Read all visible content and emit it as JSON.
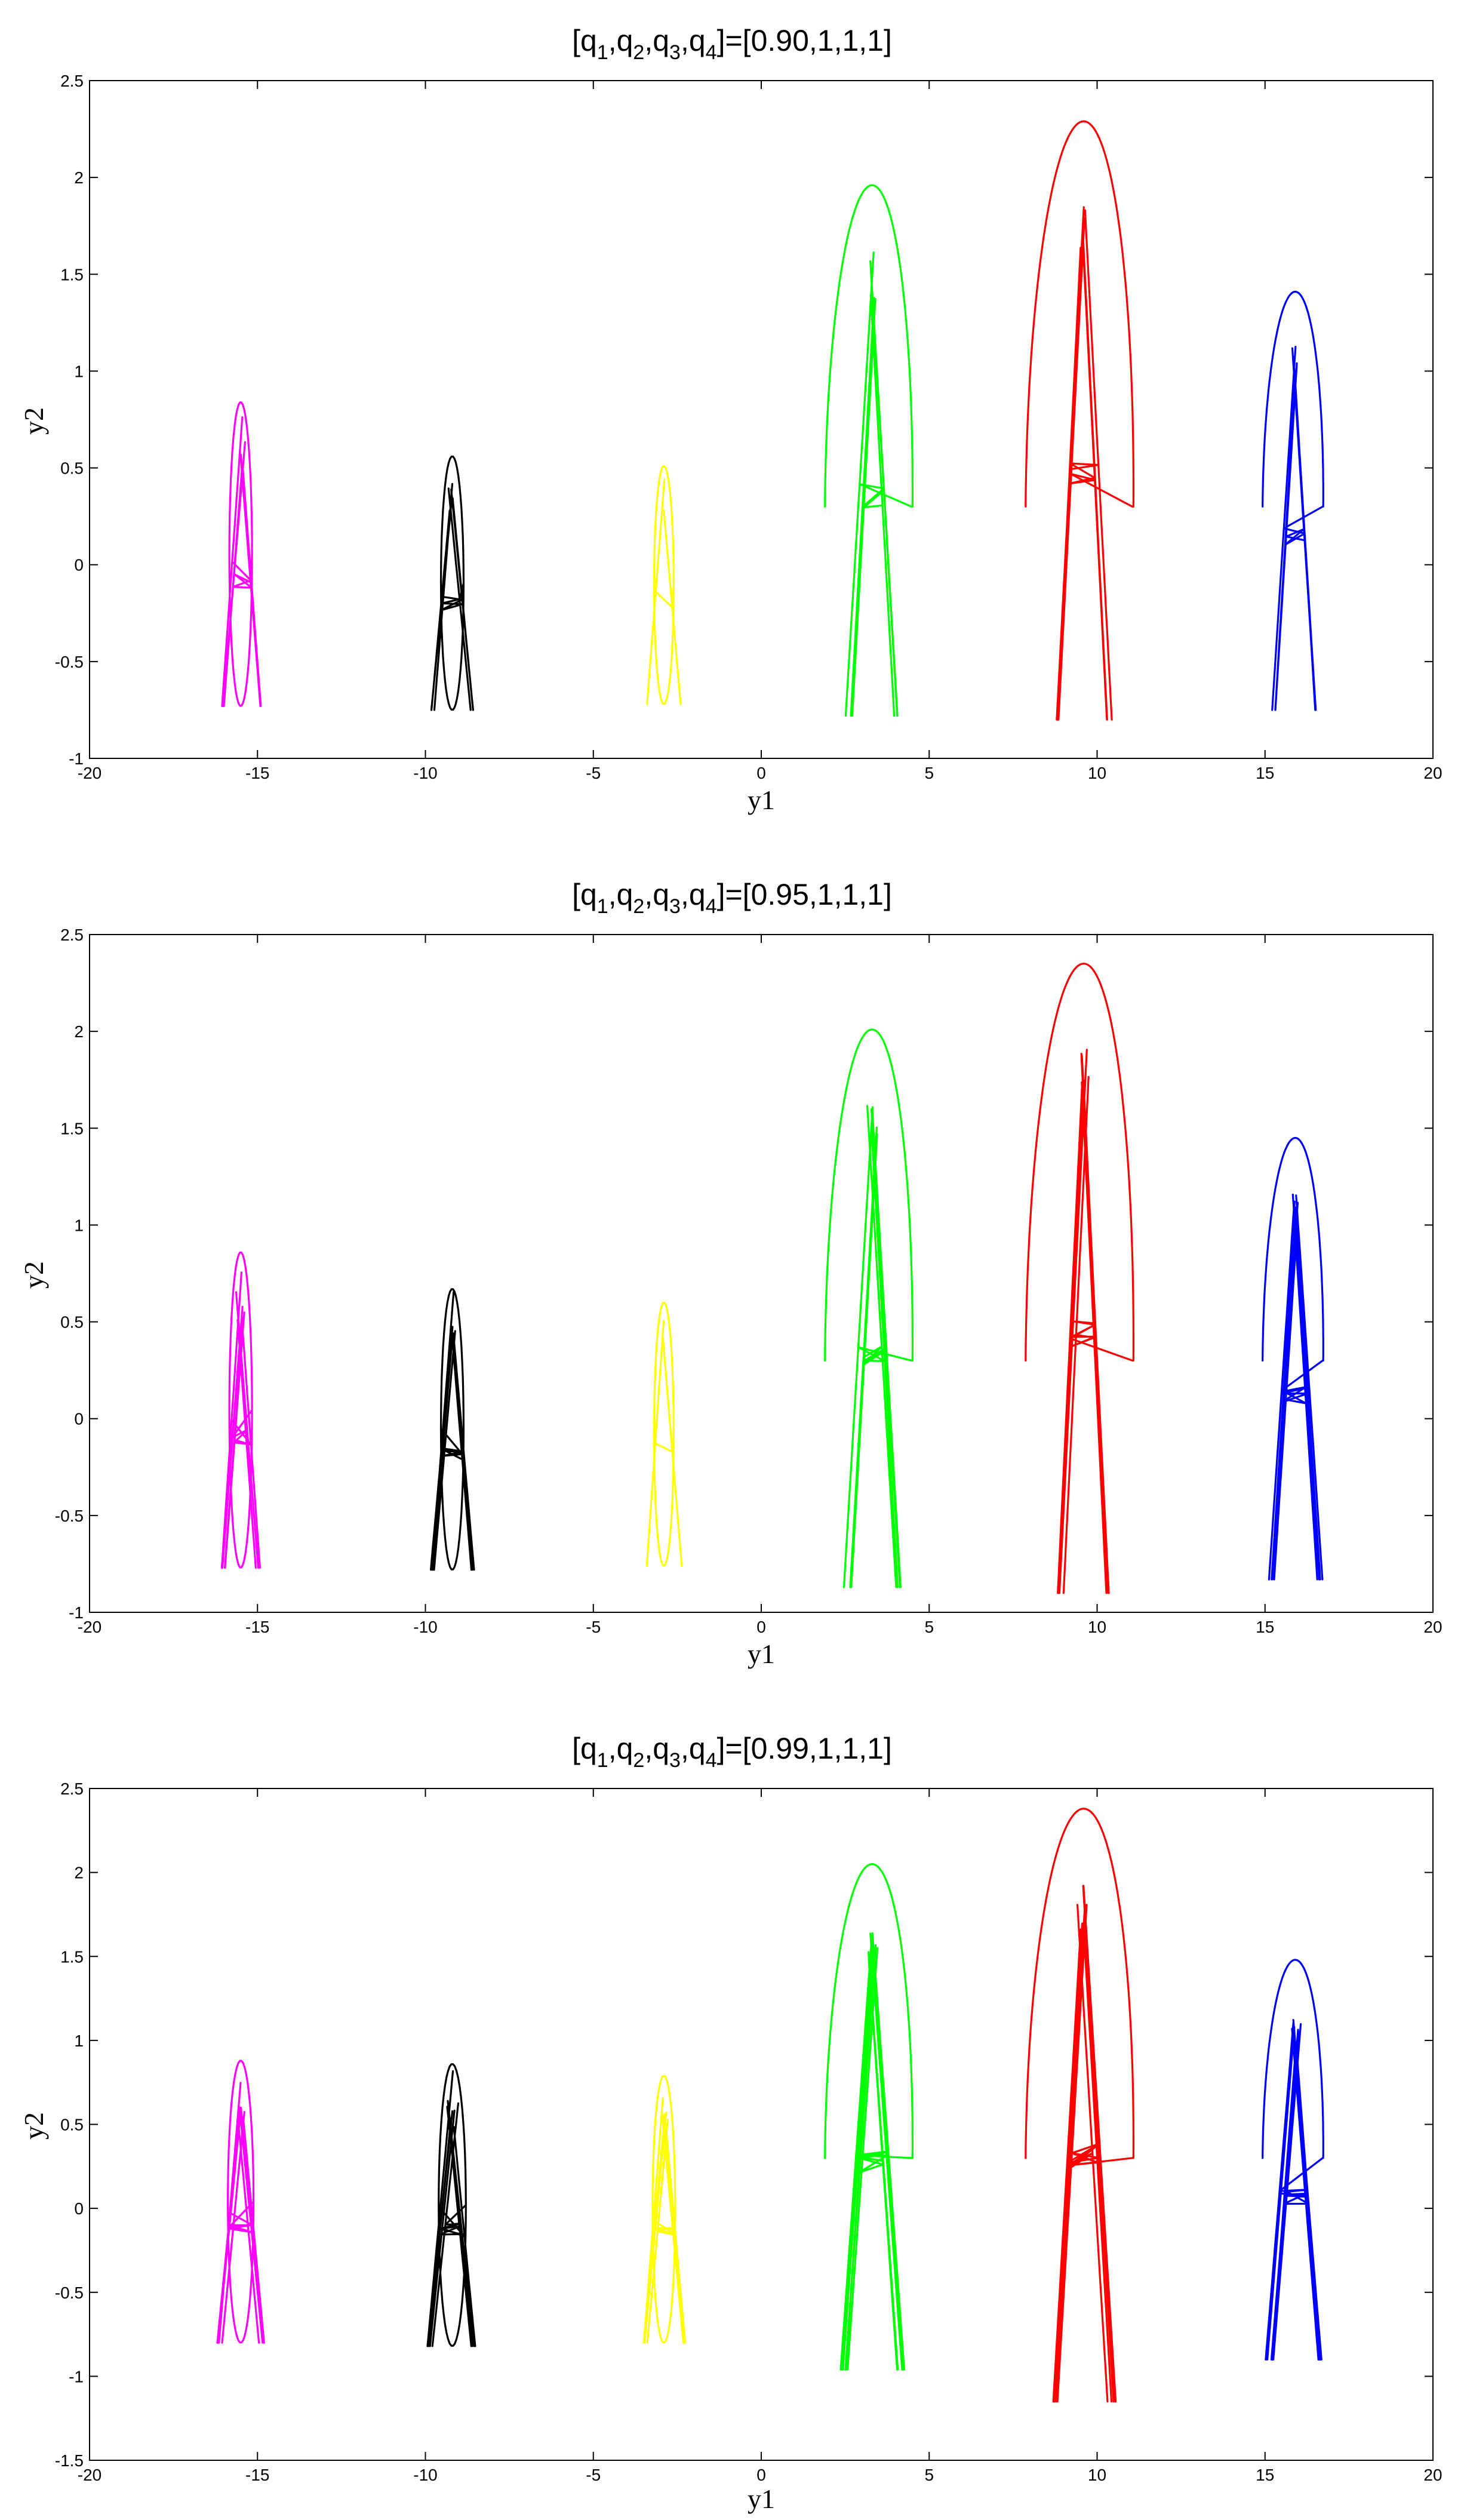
{
  "colors": {
    "magenta": "#ff00ff",
    "black": "#000000",
    "yellow": "#ffff00",
    "green": "#00ff00",
    "red": "#ff0000",
    "blue": "#0000ff"
  },
  "chart_data": [
    {
      "type": "line",
      "title": "[q1,q2,q3,q4]=[0.90,1,1,1]",
      "title_parts": {
        "open": "[q",
        "s1": "1",
        "c1": ",q",
        "s2": "2",
        "c2": ",q",
        "s3": "3",
        "c3": ",q",
        "s4": "4",
        "rest": "]=[0.90,1,1,1]"
      },
      "xlabel": "y1",
      "ylabel": "y2",
      "xlim": [
        -20,
        20
      ],
      "ylim": [
        -1,
        2.5
      ],
      "xticks": [
        -20,
        -15,
        -10,
        -5,
        0,
        5,
        10,
        15,
        20
      ],
      "xtick_labels": [
        "-20",
        "-15",
        "-10",
        "-5",
        "0",
        "5",
        "10",
        "15",
        "20"
      ],
      "yticks": [
        -1,
        -0.5,
        0,
        0.5,
        1,
        1.5,
        2,
        2.5
      ],
      "ytick_labels": [
        "-1",
        "-0.5",
        "0",
        "0.5",
        "1",
        "1.5",
        "2",
        "2.5"
      ],
      "grid": false,
      "series": [
        {
          "color": "magenta",
          "center": -15.5,
          "x_range": [
            -16.3,
            -14.8
          ],
          "y_range": [
            -0.73,
            0.84
          ],
          "loops": 6,
          "transient_start": null
        },
        {
          "color": "black",
          "center": -9.2,
          "x_range": [
            -10.0,
            -8.5
          ],
          "y_range": [
            -0.75,
            0.56
          ],
          "loops": 6,
          "transient_start": null
        },
        {
          "color": "yellow",
          "center": -2.9,
          "x_range": [
            -3.5,
            -2.2
          ],
          "y_range": [
            -0.72,
            0.51
          ],
          "loops": 2,
          "transient_start": null
        },
        {
          "color": "green",
          "center": 3.3,
          "x_range": [
            2.5,
            4.4
          ],
          "y_range": [
            -0.78,
            1.96
          ],
          "loops": 6,
          "transient_start": [
            2.0,
            0.3
          ]
        },
        {
          "color": "red",
          "center": 9.6,
          "x_range": [
            8.7,
            10.6
          ],
          "y_range": [
            -0.8,
            2.29
          ],
          "loops": 7,
          "transient_start": [
            8.0,
            0.3
          ]
        },
        {
          "color": "blue",
          "center": 15.9,
          "x_range": [
            15.1,
            16.7
          ],
          "y_range": [
            -0.75,
            1.41
          ],
          "loops": 6,
          "transient_start": [
            15.0,
            0.3
          ]
        }
      ]
    },
    {
      "type": "line",
      "title": "[q1,q2,q3,q4]=[0.95,1,1,1]",
      "title_parts": {
        "open": "[q",
        "s1": "1",
        "c1": ",q",
        "s2": "2",
        "c2": ",q",
        "s3": "3",
        "c3": ",q",
        "s4": "4",
        "rest": "]=[0.95,1,1,1]"
      },
      "xlabel": "y1",
      "ylabel": "y2",
      "xlim": [
        -20,
        20
      ],
      "ylim": [
        -1,
        2.5
      ],
      "xticks": [
        -20,
        -15,
        -10,
        -5,
        0,
        5,
        10,
        15,
        20
      ],
      "xtick_labels": [
        "-20",
        "-15",
        "-10",
        "-5",
        "0",
        "5",
        "10",
        "15",
        "20"
      ],
      "yticks": [
        -1,
        -0.5,
        0,
        0.5,
        1,
        1.5,
        2,
        2.5
      ],
      "ytick_labels": [
        "-1",
        "-0.5",
        "0",
        "0.5",
        "1",
        "1.5",
        "2",
        "2.5"
      ],
      "grid": false,
      "series": [
        {
          "color": "magenta",
          "center": -15.5,
          "x_range": [
            -16.3,
            -14.8
          ],
          "y_range": [
            -0.77,
            0.86
          ],
          "loops": 7,
          "transient_start": null
        },
        {
          "color": "black",
          "center": -9.2,
          "x_range": [
            -10.0,
            -8.5
          ],
          "y_range": [
            -0.78,
            0.67
          ],
          "loops": 8,
          "transient_start": null
        },
        {
          "color": "yellow",
          "center": -2.9,
          "x_range": [
            -3.5,
            -2.2
          ],
          "y_range": [
            -0.76,
            0.6
          ],
          "loops": 2,
          "transient_start": null
        },
        {
          "color": "green",
          "center": 3.3,
          "x_range": [
            2.4,
            4.4
          ],
          "y_range": [
            -0.87,
            2.01
          ],
          "loops": 9,
          "transient_start": [
            2.0,
            0.3
          ]
        },
        {
          "color": "red",
          "center": 9.6,
          "x_range": [
            8.7,
            10.6
          ],
          "y_range": [
            -0.9,
            2.35
          ],
          "loops": 10,
          "transient_start": [
            8.0,
            0.3
          ]
        },
        {
          "color": "blue",
          "center": 15.9,
          "x_range": [
            15.0,
            16.8
          ],
          "y_range": [
            -0.83,
            1.45
          ],
          "loops": 9,
          "transient_start": [
            15.0,
            0.3
          ]
        }
      ]
    },
    {
      "type": "line",
      "title": "[q1,q2,q3,q4]=[0.99,1,1,1]",
      "title_parts": {
        "open": "[q",
        "s1": "1",
        "c1": ",q",
        "s2": "2",
        "c2": ",q",
        "s3": "3",
        "c3": ",q",
        "s4": "4",
        "rest": "]=[0.99,1,1,1]"
      },
      "xlabel": "y1",
      "ylabel": "y2",
      "xlim": [
        -20,
        20
      ],
      "ylim": [
        -1.5,
        2.5
      ],
      "xticks": [
        -20,
        -15,
        -10,
        -5,
        0,
        5,
        10,
        15,
        20
      ],
      "xtick_labels": [
        "-20",
        "-15",
        "-10",
        "-5",
        "0",
        "5",
        "10",
        "15",
        "20"
      ],
      "yticks": [
        -1.5,
        -1,
        -0.5,
        0,
        0.5,
        1,
        1.5,
        2,
        2.5
      ],
      "ytick_labels": [
        "-1.5",
        "-1",
        "-0.5",
        "0",
        "0.5",
        "1",
        "1.5",
        "2",
        "2.5"
      ],
      "grid": false,
      "series": [
        {
          "color": "magenta",
          "center": -15.5,
          "x_range": [
            -16.4,
            -14.7
          ],
          "y_range": [
            -0.8,
            0.88
          ],
          "loops": 9,
          "transient_start": null
        },
        {
          "color": "black",
          "center": -9.2,
          "x_range": [
            -10.1,
            -8.3
          ],
          "y_range": [
            -0.82,
            0.86
          ],
          "loops": 9,
          "transient_start": null
        },
        {
          "color": "yellow",
          "center": -2.9,
          "x_range": [
            -3.6,
            -2.1
          ],
          "y_range": [
            -0.8,
            0.79
          ],
          "loops": 8,
          "transient_start": null
        },
        {
          "color": "green",
          "center": 3.3,
          "x_range": [
            2.4,
            4.6
          ],
          "y_range": [
            -0.96,
            2.05
          ],
          "loops": 11,
          "transient_start": [
            2.0,
            0.3
          ]
        },
        {
          "color": "red",
          "center": 9.6,
          "x_range": [
            8.6,
            10.8
          ],
          "y_range": [
            -1.15,
            2.38
          ],
          "loops": 11,
          "transient_start": [
            8.0,
            0.3
          ]
        },
        {
          "color": "blue",
          "center": 15.9,
          "x_range": [
            15.0,
            17.0
          ],
          "y_range": [
            -0.9,
            1.48
          ],
          "loops": 11,
          "transient_start": [
            15.0,
            0.3
          ]
        }
      ]
    }
  ]
}
